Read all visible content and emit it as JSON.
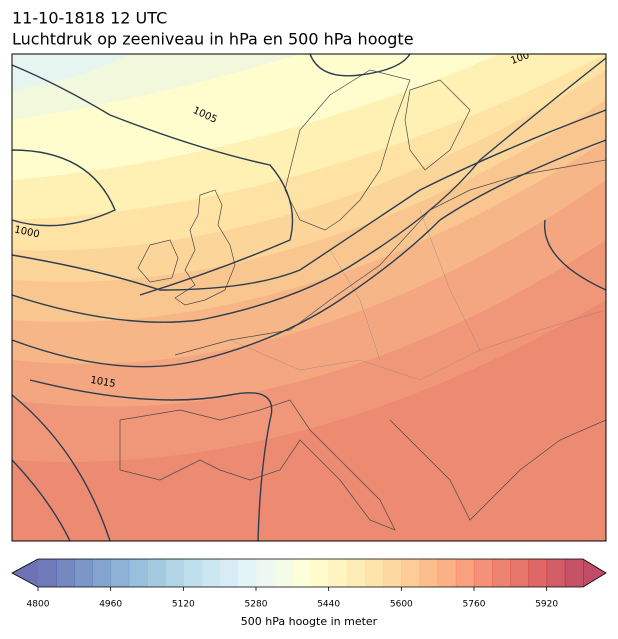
{
  "header": {
    "date": "11-10-1818 12 UTC",
    "title": "Luchtdruk op zeeniveau in hPa en 500 hPa hoogte"
  },
  "map": {
    "contour_labels": [
      "1005",
      "1000",
      "1015",
      "100"
    ]
  },
  "colorbar": {
    "label": "500 hPa hoogte in meter",
    "lim": [
      4800,
      6000
    ],
    "step": 40,
    "ticks": [
      4800,
      4960,
      5120,
      5280,
      5440,
      5600,
      5760,
      5920
    ],
    "colors": [
      "#313695",
      "#4575b4",
      "#74add1",
      "#abd9e9",
      "#e0f3f8",
      "#ffffbf",
      "#fee090",
      "#fdae61",
      "#f46d43",
      "#d73027",
      "#a50026"
    ],
    "opacity": 0.7,
    "extend": "both"
  }
}
